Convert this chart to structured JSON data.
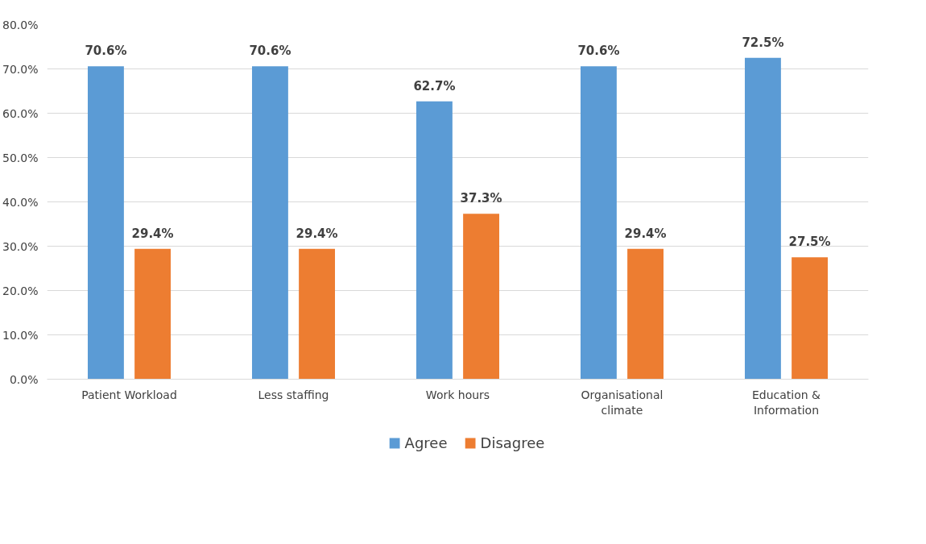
{
  "chart_data": {
    "type": "bar",
    "categories": [
      "Patient Workload",
      "Less staffing",
      "Work hours",
      "Organisational climate",
      "Education & Information"
    ],
    "series": [
      {
        "name": "Agree",
        "color": "#5b9bd5",
        "values": [
          70.6,
          70.6,
          62.7,
          70.6,
          72.5
        ],
        "value_labels": [
          "70.6%",
          "70.6%",
          "62.7%",
          "70.6%",
          "72.5%"
        ]
      },
      {
        "name": "Disagree",
        "color": "#ed7d31",
        "values": [
          29.4,
          29.4,
          37.3,
          29.4,
          27.5
        ],
        "value_labels": [
          "29.4%",
          "29.4%",
          "37.3%",
          "29.4%",
          "27.5%"
        ]
      }
    ],
    "ylim": [
      0,
      80
    ],
    "yticks": [
      {
        "value": 0,
        "label": "0.0%"
      },
      {
        "value": 10,
        "label": "10.0%"
      },
      {
        "value": 20,
        "label": "20.0%"
      },
      {
        "value": 30,
        "label": "30.0%"
      },
      {
        "value": 40,
        "label": "40.0%"
      },
      {
        "value": 50,
        "label": "50.0%"
      },
      {
        "value": 60,
        "label": "60.0%"
      },
      {
        "value": 70,
        "label": "70.0%"
      },
      {
        "value": 80,
        "label": "80.0%"
      }
    ],
    "grid": "y",
    "legend": "bottom"
  }
}
